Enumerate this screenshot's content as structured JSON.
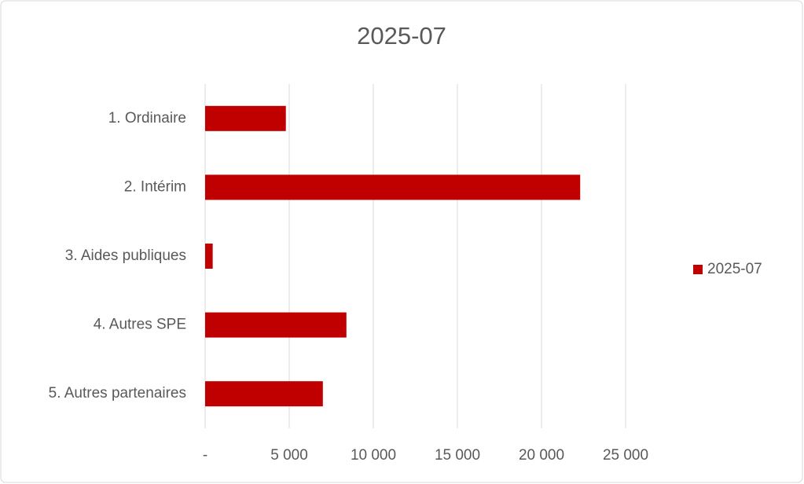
{
  "chart_data": {
    "type": "hbar",
    "title": "2025-07",
    "categories": [
      "1. Ordinaire",
      "2. Intérim",
      "3. Aides publiques",
      "4. Autres SPE",
      "5. Autres partenaires"
    ],
    "series": [
      {
        "name": "2025-07",
        "color": "#c00000",
        "values": [
          4800,
          22300,
          450,
          8400,
          7000
        ]
      }
    ],
    "xlim": [
      0,
      25000
    ],
    "xticks": [
      {
        "value": 0,
        "label": "-"
      },
      {
        "value": 5000,
        "label": "5 000"
      },
      {
        "value": 10000,
        "label": "10 000"
      },
      {
        "value": 15000,
        "label": "15 000"
      },
      {
        "value": 20000,
        "label": "20 000"
      },
      {
        "value": 25000,
        "label": "25 000"
      }
    ],
    "grid": true,
    "legend": "right"
  }
}
